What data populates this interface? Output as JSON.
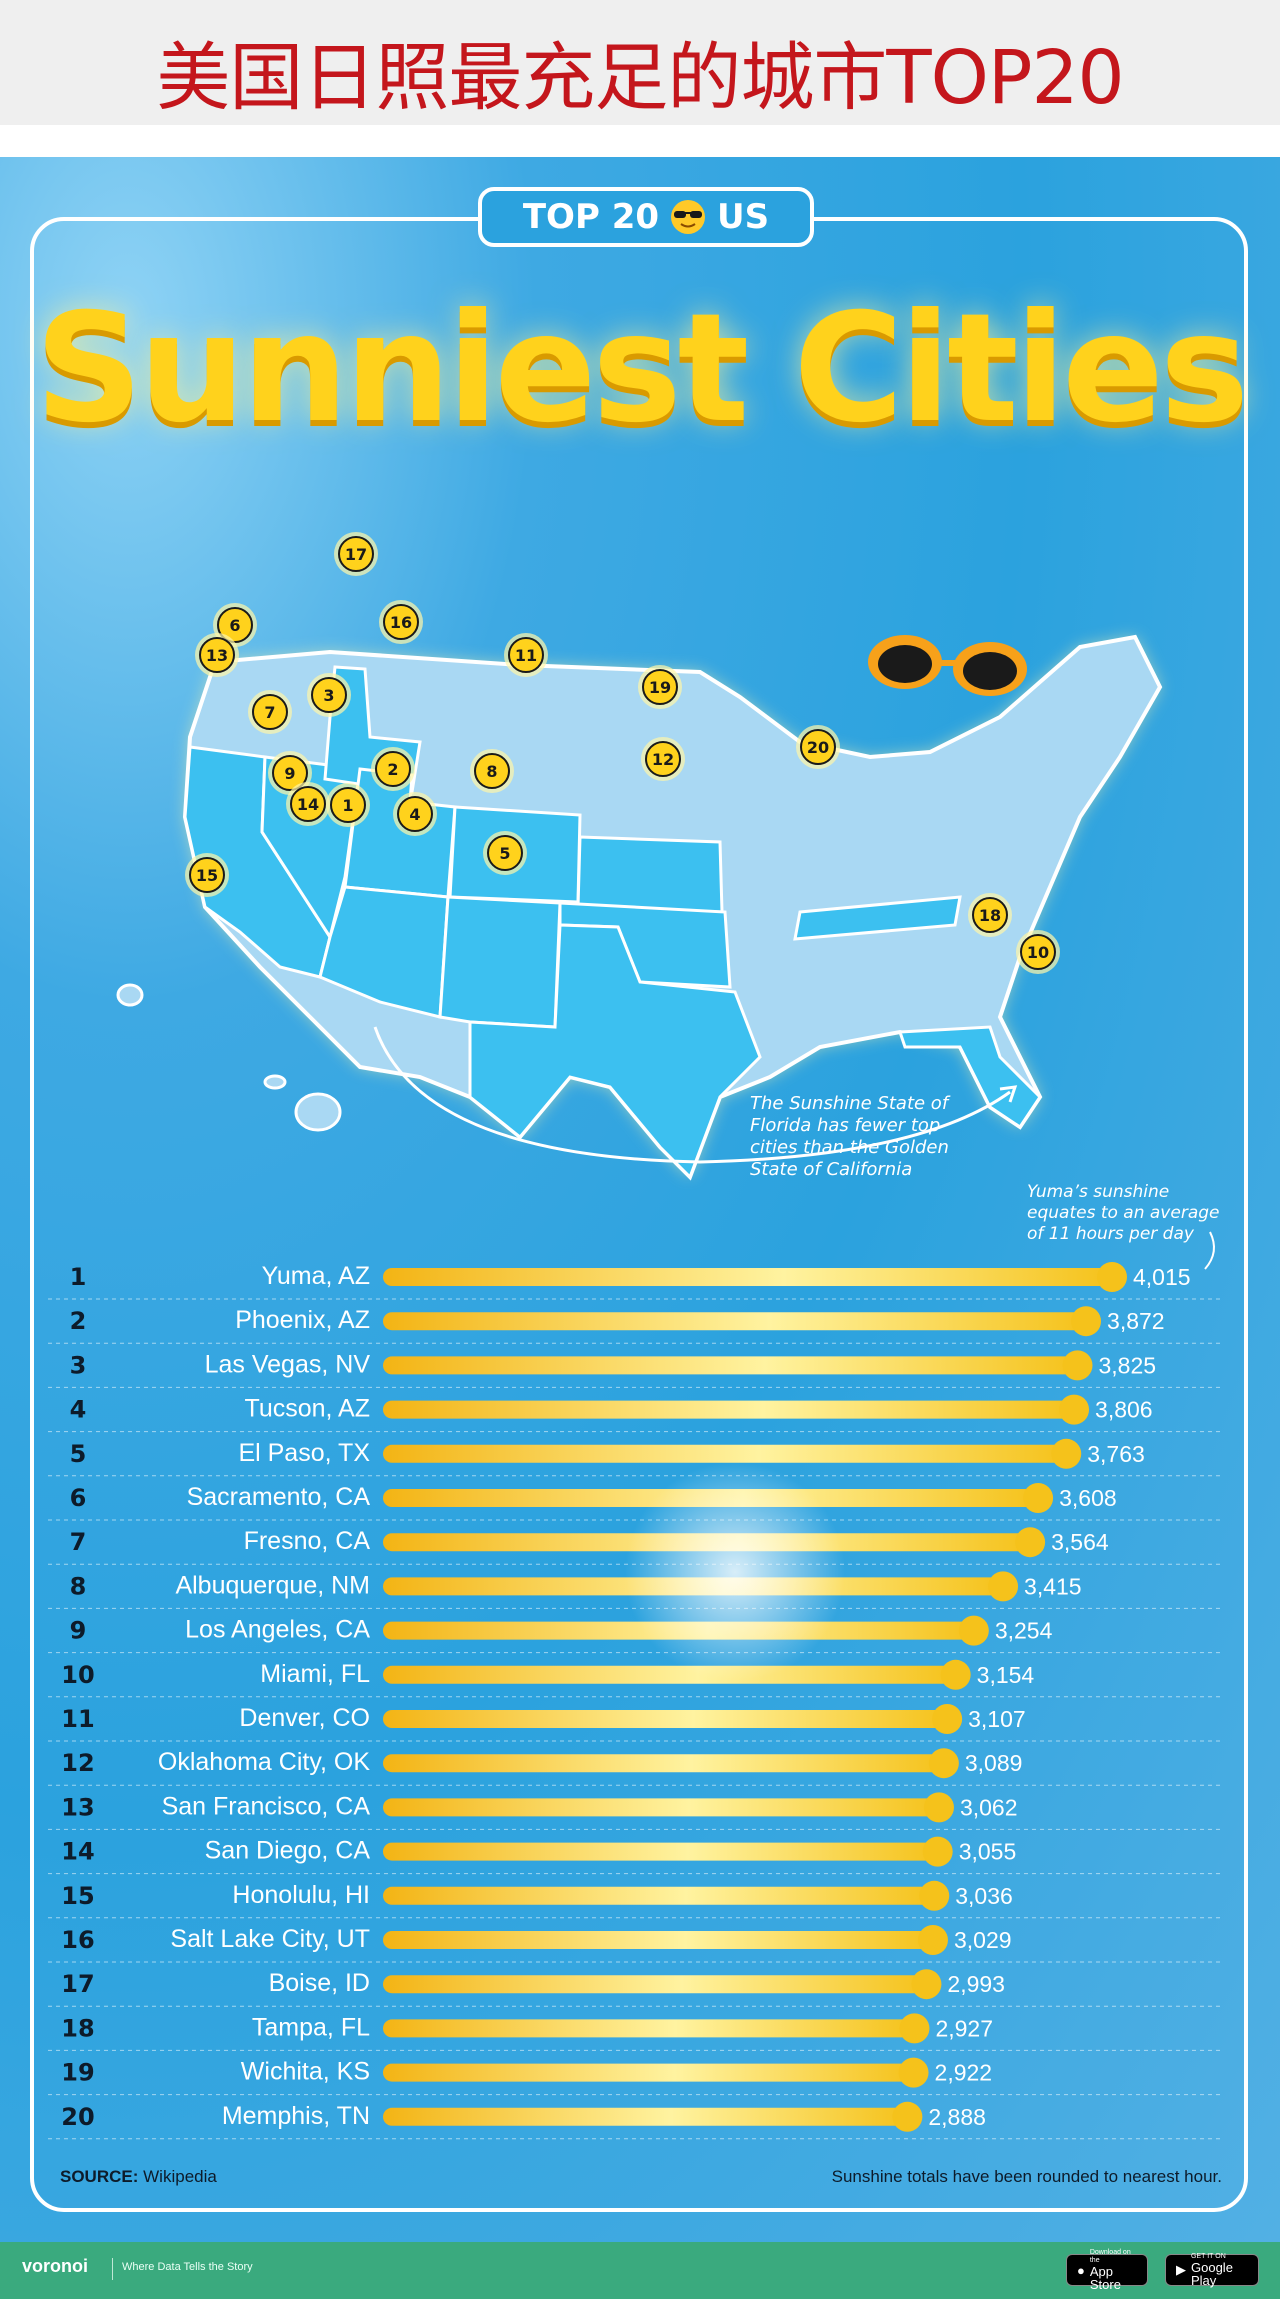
{
  "banner": {
    "title": "美国日照最充足的城市TOP20"
  },
  "poster": {
    "pill_left": "TOP 20",
    "pill_right": "US",
    "headline": "Sunniest Cities",
    "map_note": [
      "The Sunshine State of",
      "Florida has fewer top",
      "cities than the Golden",
      "State of California"
    ],
    "yuma_note": [
      "Yuma’s sunshine",
      "equates to an average",
      "of 11 hours per day"
    ]
  },
  "chart_data": {
    "type": "bar",
    "orientation": "horizontal",
    "ranks": [
      "1",
      "2",
      "3",
      "4",
      "5",
      "6",
      "7",
      "8",
      "9",
      "10",
      "11",
      "12",
      "13",
      "14",
      "15",
      "16",
      "17",
      "18",
      "19",
      "20"
    ],
    "categories": [
      "Yuma, AZ",
      "Phoenix, AZ",
      "Las Vegas, NV",
      "Tucson, AZ",
      "El Paso, TX",
      "Sacramento, CA",
      "Fresno, CA",
      "Albuquerque, NM",
      "Los Angeles, CA",
      "Miami, FL",
      "Denver, CO",
      "Oklahoma City, OK",
      "San Francisco, CA",
      "San Diego, CA",
      "Honolulu, HI",
      "Salt Lake City, UT",
      "Boise, ID",
      "Tampa, FL",
      "Wichita, KS",
      "Memphis, TN"
    ],
    "values": [
      4015,
      3872,
      3825,
      3806,
      3763,
      3608,
      3564,
      3415,
      3254,
      3154,
      3107,
      3089,
      3062,
      3055,
      3036,
      3029,
      2993,
      2927,
      2922,
      2888
    ],
    "value_labels": [
      "4,015",
      "3,872",
      "3,825",
      "3,806",
      "3,763",
      "3,608",
      "3,564",
      "3,415",
      "3,254",
      "3,154",
      "3,107",
      "3,089",
      "3,062",
      "3,055",
      "3,036",
      "3,029",
      "2,993",
      "2,927",
      "2,922",
      "2,888"
    ],
    "map_markers": [
      "1",
      "2",
      "3",
      "4",
      "5",
      "6",
      "7",
      "8",
      "9",
      "10",
      "11",
      "12",
      "13",
      "14",
      "15",
      "16",
      "17",
      "18",
      "19",
      "20"
    ],
    "colors": {
      "bar": "#f5c21b",
      "bar_light": "#fff3a0",
      "background": "#2ba2de",
      "map_highlight": "#3cc0f0",
      "map_base": "#a9d8f3"
    }
  },
  "footer": {
    "source_label": "SOURCE:",
    "source_value": "Wikipedia",
    "rounding_note": "Sunshine totals have been rounded to nearest hour.",
    "brand": "voronoi",
    "tagline": "Where Data Tells the Story",
    "app_store_small": "Download on the",
    "app_store": "App Store",
    "google_small": "GET IT ON",
    "google": "Google Play"
  }
}
